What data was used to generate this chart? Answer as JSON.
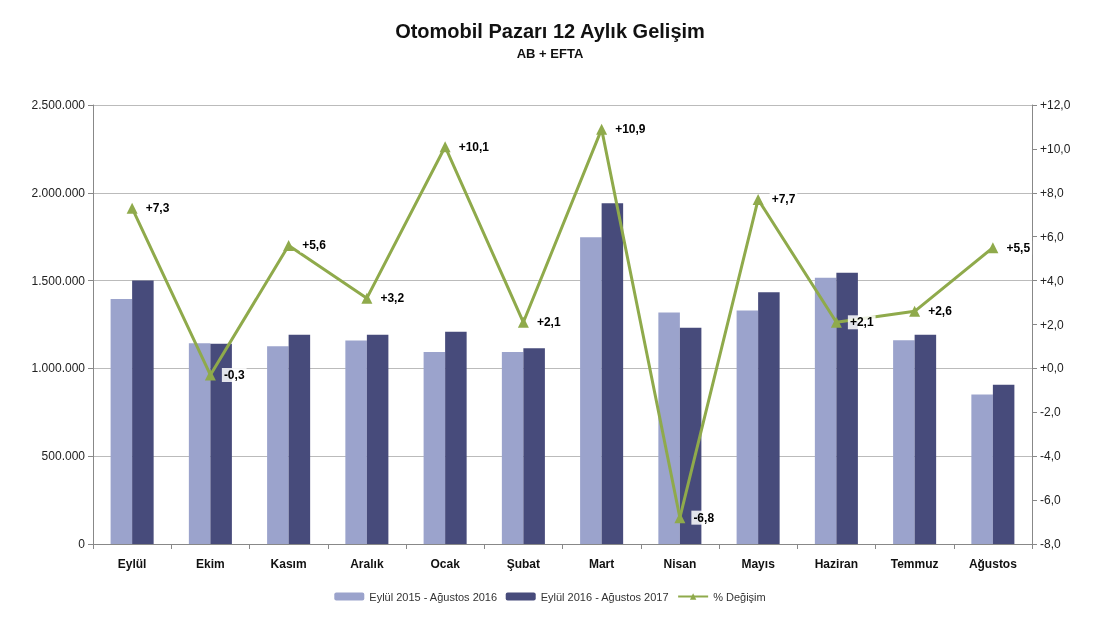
{
  "chart_data": {
    "type": "bar",
    "title": "Otomobil Pazarı 12 Aylık Gelişim",
    "subtitle": "AB + EFTA",
    "categories": [
      "Eylül",
      "Ekim",
      "Kasım",
      "Aralık",
      "Ocak",
      "Şubat",
      "Mart",
      "Nisan",
      "Mayıs",
      "Haziran",
      "Temmuz",
      "Ağustos"
    ],
    "series": [
      {
        "name": "Eylül 2015 - Ağustos 2016",
        "color": "#9ba3cc",
        "values": [
          1395000,
          1143000,
          1126000,
          1159000,
          1093000,
          1093000,
          1747000,
          1319000,
          1330000,
          1516000,
          1160000,
          852000
        ]
      },
      {
        "name": "Eylül 2016 - Ağustos 2017",
        "color": "#474b7b",
        "values": [
          1500000,
          1140000,
          1192000,
          1192000,
          1209000,
          1115000,
          1940000,
          1231000,
          1434000,
          1544000,
          1192000,
          907000
        ]
      },
      {
        "name": "% Değişim",
        "type": "line",
        "axis": "y2",
        "color": "#8faa4b",
        "marker": "triangle",
        "values": [
          7.3,
          -0.3,
          5.6,
          3.2,
          10.1,
          2.1,
          10.9,
          -6.8,
          7.7,
          2.1,
          2.6,
          5.5
        ],
        "value_labels": [
          "+7,3",
          "-0,3",
          "+5,6",
          "+3,2",
          "+10,1",
          "+2,1",
          "+10,9",
          "-6,8",
          "+7,7",
          "+2,1",
          "+2,6",
          "+5,5"
        ]
      }
    ],
    "ylim": [
      0,
      2500000
    ],
    "yticks": [
      {
        "value": 0,
        "label": "0"
      },
      {
        "value": 500000,
        "label": "500.000"
      },
      {
        "value": 1000000,
        "label": "1.000.000"
      },
      {
        "value": 1500000,
        "label": "1.500.000"
      },
      {
        "value": 2000000,
        "label": "2.000.000"
      },
      {
        "value": 2500000,
        "label": "2.500.000"
      }
    ],
    "y2lim": [
      -8,
      12
    ],
    "y2ticks": [
      {
        "value": -8,
        "label": "-8,0"
      },
      {
        "value": -6,
        "label": "-6,0"
      },
      {
        "value": -4,
        "label": "-4,0"
      },
      {
        "value": -2,
        "label": "-2,0"
      },
      {
        "value": 0,
        "label": "+0,0"
      },
      {
        "value": 2,
        "label": "+2,0"
      },
      {
        "value": 4,
        "label": "+4,0"
      },
      {
        "value": 6,
        "label": "+6,0"
      },
      {
        "value": 8,
        "label": "+8,0"
      },
      {
        "value": 10,
        "label": "+10,0"
      },
      {
        "value": 12,
        "label": "+12,0"
      }
    ],
    "grid": "y",
    "legend": "bottom"
  }
}
